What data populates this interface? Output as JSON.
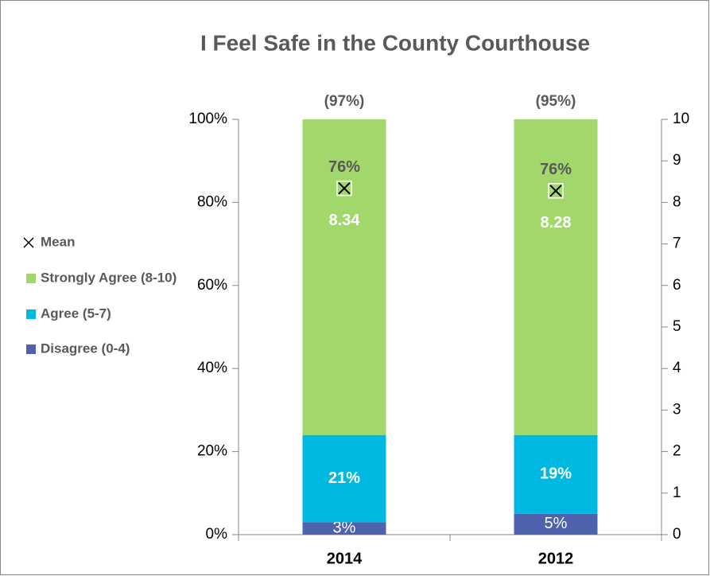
{
  "chart_data": {
    "type": "bar",
    "stacked": true,
    "title": "I Feel Safe in the County Courthouse",
    "categories": [
      "2014",
      "2012"
    ],
    "series": [
      {
        "name": "Disagree (0-4)",
        "color": "#4f62ad",
        "values": [
          3,
          5
        ],
        "value_labels": [
          "3%",
          "5%"
        ]
      },
      {
        "name": "Agree (5-7)",
        "color": "#00b9e2",
        "values": [
          21,
          19
        ],
        "value_labels": [
          "21%",
          "19%"
        ]
      },
      {
        "name": "Strongly Agree (8-10)",
        "color": "#a2d86b",
        "values": [
          76,
          76
        ],
        "value_labels": [
          "76%",
          "76%"
        ]
      },
      {
        "name": "Mean",
        "axis": "y2",
        "marker": "x",
        "values": [
          8.34,
          8.28
        ]
      }
    ],
    "annotations": [
      "(97%)",
      "(95%)"
    ],
    "ylim": [
      0,
      100
    ],
    "yticks": [
      {
        "value": 0,
        "label": "0%"
      },
      {
        "value": 20,
        "label": "20%"
      },
      {
        "value": 40,
        "label": "40%"
      },
      {
        "value": 60,
        "label": "60%"
      },
      {
        "value": 80,
        "label": "80%"
      },
      {
        "value": 100,
        "label": "100%"
      }
    ],
    "y2lim": [
      0,
      10
    ],
    "y2ticks": [
      0,
      1,
      2,
      3,
      4,
      5,
      6,
      7,
      8,
      9,
      10
    ],
    "legend": "left",
    "grid": false
  }
}
